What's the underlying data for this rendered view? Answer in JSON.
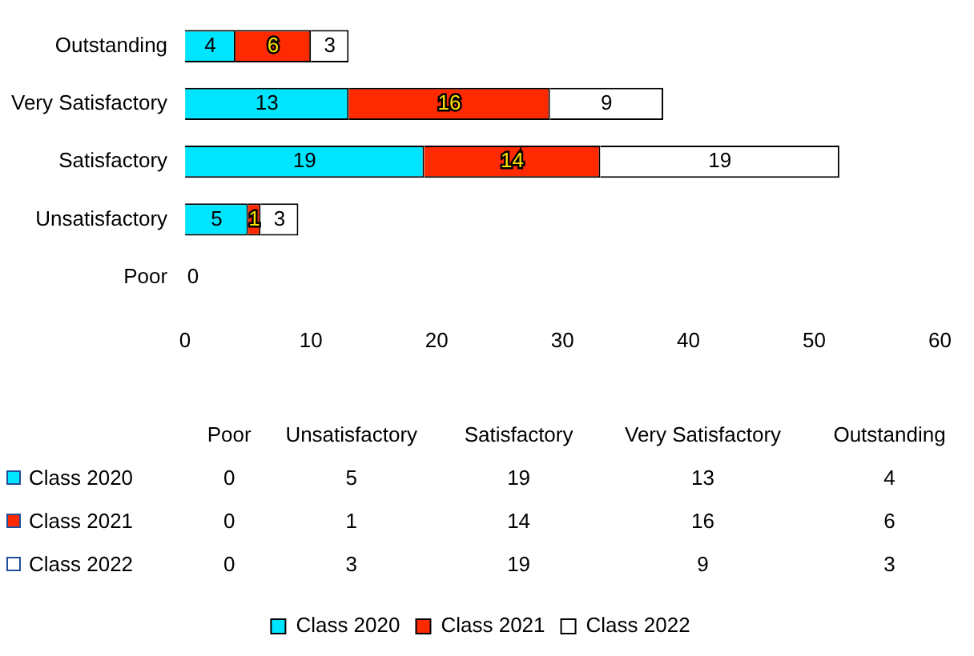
{
  "chart_data": [
    {
      "type": "bar",
      "orientation": "horizontal",
      "stacked": true,
      "categories": [
        "Outstanding",
        "Very Satisfactory",
        "Satisfactory",
        "Unsatisfactory",
        "Poor"
      ],
      "series": [
        {
          "name": "Class 2020",
          "color": "#00e5ff",
          "values": [
            4,
            13,
            19,
            5,
            0
          ],
          "value_labels": [
            "4",
            "13",
            "19",
            "5",
            "0"
          ]
        },
        {
          "name": "Class 2021",
          "color": "#ff2a00",
          "values": [
            6,
            16,
            14,
            1,
            0
          ],
          "value_labels": [
            "6",
            "16",
            "14",
            "1",
            null
          ]
        },
        {
          "name": "Class 2022",
          "color": "#ffffff",
          "values": [
            3,
            9,
            19,
            3,
            0
          ],
          "value_labels": [
            "3",
            "9",
            "19",
            "3",
            null
          ]
        }
      ],
      "xlim": [
        0,
        60
      ],
      "xticks": [
        0,
        10,
        20,
        30,
        40,
        50,
        60
      ],
      "grid": false,
      "legend": "bottom"
    },
    {
      "type": "other",
      "data_labels": true,
      "categories": [
        "Poor",
        "Unsatisfactory",
        "Satisfactory",
        "Very Satisfactory",
        "Outstanding"
      ],
      "series": [
        {
          "name": "Class 2020",
          "color": "#00e5ff",
          "values": [
            0,
            5,
            19,
            13,
            4
          ]
        },
        {
          "name": "Class 2021",
          "color": "#ff2a00",
          "values": [
            0,
            1,
            14,
            16,
            6
          ]
        },
        {
          "name": "Class 2022",
          "color": "#ffffff",
          "values": [
            0,
            3,
            19,
            9,
            3
          ]
        }
      ]
    }
  ]
}
